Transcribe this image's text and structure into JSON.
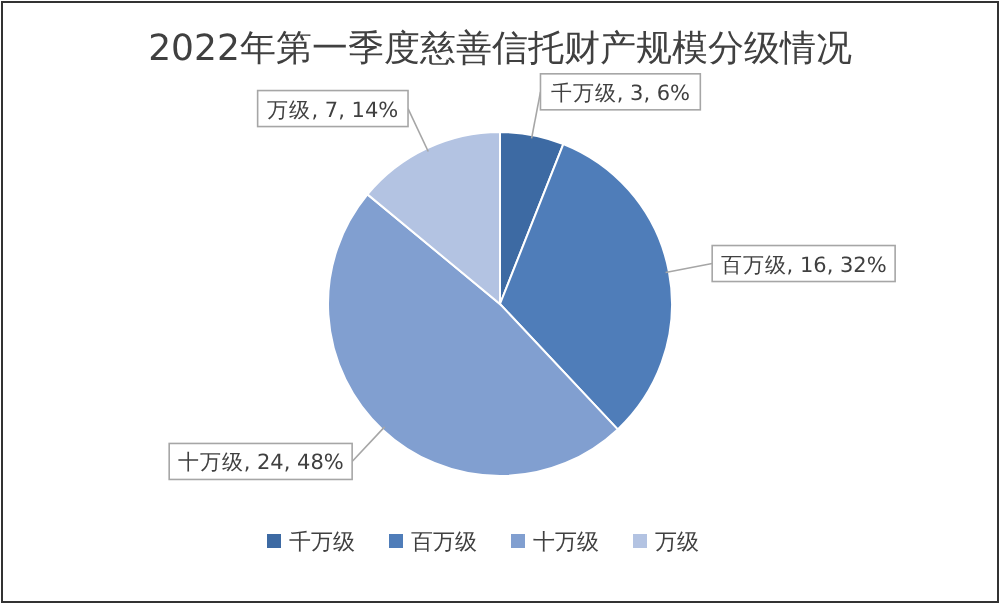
{
  "chart_data": {
    "type": "pie",
    "title": "2022年第一季度慈善信托财产规模分级情况",
    "categories": [
      "千万级",
      "百万级",
      "十万级",
      "万级"
    ],
    "values": [
      3,
      16,
      24,
      7
    ],
    "value_labels": [
      "千万级, 3, 6%",
      "百万级, 16, 32%",
      "十万级, 24, 48%",
      "万级, 7, 14%"
    ],
    "colors": [
      "#3d6aa3",
      "#4f7db9",
      "#819fd0",
      "#b3c3e2"
    ],
    "legend": "bottom"
  }
}
